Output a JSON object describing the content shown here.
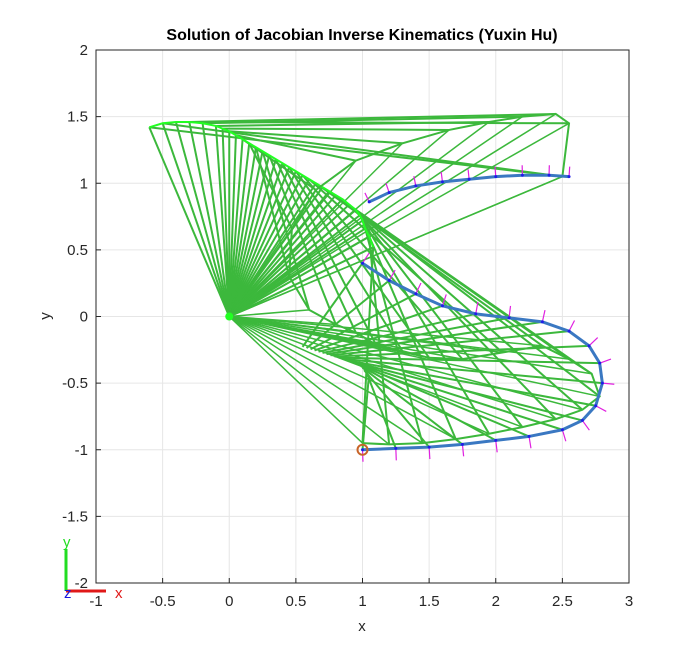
{
  "chart_data": {
    "type": "line",
    "title": "Solution of Jacobian Inverse Kinematics (Yuxin Hu)",
    "xlabel": "x",
    "ylabel": "y",
    "xlim": [
      -1,
      3
    ],
    "ylim": [
      -2,
      2
    ],
    "xticks": [
      -1,
      -0.5,
      0,
      0.5,
      1,
      1.5,
      2,
      2.5,
      3
    ],
    "yticks": [
      -2,
      -1.5,
      -1,
      -0.5,
      0,
      0.5,
      1,
      1.5,
      2
    ],
    "xtick_labels": [
      "-1",
      "-0.5",
      "0",
      "0.5",
      "1",
      "1.5",
      "2",
      "2.5",
      "3"
    ],
    "ytick_labels": [
      "-2",
      "-1.5",
      "-1",
      "-0.5",
      "0",
      "0.5",
      "1",
      "1.5",
      "2"
    ],
    "grid": true,
    "colors": {
      "arm": "#3cb83c",
      "arm_bright": "#22ff22",
      "desired_path": "#3a78c2",
      "actual_path": "#1e1ee8",
      "normals": "#e020e0",
      "start_marker": "#c86428",
      "axis_x": "#e01818",
      "axis_y": "#22dd22",
      "axis_z": "#1818e0"
    },
    "start_point": {
      "x": 1.0,
      "y": -1.0
    },
    "base_point": {
      "x": 0.0,
      "y": 0.0
    },
    "series": [
      {
        "kind": "desired-path",
        "x": [
          1.0,
          1.25,
          1.5,
          1.75,
          2.0,
          2.25,
          2.5,
          2.65,
          2.75,
          2.8,
          2.78,
          2.7,
          2.55,
          2.35,
          2.1,
          1.85,
          1.6,
          1.4,
          1.2,
          1.0
        ],
        "y": [
          -1.0,
          -0.99,
          -0.98,
          -0.96,
          -0.93,
          -0.9,
          -0.85,
          -0.78,
          -0.67,
          -0.5,
          -0.35,
          -0.22,
          -0.11,
          -0.04,
          -0.01,
          0.02,
          0.08,
          0.17,
          0.27,
          0.4
        ]
      },
      {
        "kind": "upper-arc",
        "x": [
          1.05,
          1.2,
          1.4,
          1.6,
          1.8,
          2.0,
          2.2,
          2.4,
          2.55
        ],
        "y": [
          0.86,
          0.93,
          0.98,
          1.01,
          1.03,
          1.05,
          1.06,
          1.06,
          1.05
        ]
      },
      {
        "kind": "arm-tip-sweep",
        "x": [
          1.0,
          1.2,
          1.45,
          1.7,
          1.95,
          2.2,
          2.45,
          2.65,
          2.78,
          2.72,
          2.55,
          2.35,
          2.05,
          1.75,
          1.5,
          1.3,
          1.1,
          0.95,
          0.8,
          0.6,
          0.45,
          0.47,
          0.65,
          0.95,
          1.3,
          1.65,
          1.95,
          2.2,
          2.45,
          2.55,
          2.5
        ],
        "y": [
          -0.95,
          -0.96,
          -0.95,
          -0.92,
          -0.88,
          -0.83,
          -0.77,
          -0.7,
          -0.6,
          -0.43,
          -0.32,
          -0.22,
          -0.27,
          -0.32,
          -0.31,
          -0.26,
          -0.21,
          -0.12,
          -0.06,
          0.05,
          0.3,
          0.66,
          0.95,
          1.17,
          1.3,
          1.4,
          1.46,
          1.5,
          1.52,
          1.45,
          1.05
        ]
      },
      {
        "kind": "arm-elbow-sweep",
        "x": [
          1.08,
          1.05,
          1.02,
          1.0,
          0.98,
          0.95,
          0.9,
          0.85,
          0.8,
          0.75,
          0.7,
          0.65,
          0.6,
          0.55,
          0.5,
          0.45,
          0.4,
          0.35,
          0.3,
          0.25,
          0.2,
          0.15,
          0.1,
          0.05,
          0.0,
          -0.05,
          -0.1,
          -0.2,
          -0.3,
          -0.4,
          -0.5,
          -0.6
        ],
        "y": [
          0.52,
          0.6,
          0.66,
          0.72,
          0.76,
          0.8,
          0.84,
          0.88,
          0.91,
          0.94,
          0.97,
          1.0,
          1.03,
          1.06,
          1.09,
          1.12,
          1.15,
          1.18,
          1.21,
          1.24,
          1.27,
          1.3,
          1.33,
          1.36,
          1.39,
          1.41,
          1.43,
          1.45,
          1.46,
          1.46,
          1.45,
          1.42
        ]
      }
    ],
    "triad_labels": {
      "x": "x",
      "y": "y",
      "z": "z"
    }
  }
}
